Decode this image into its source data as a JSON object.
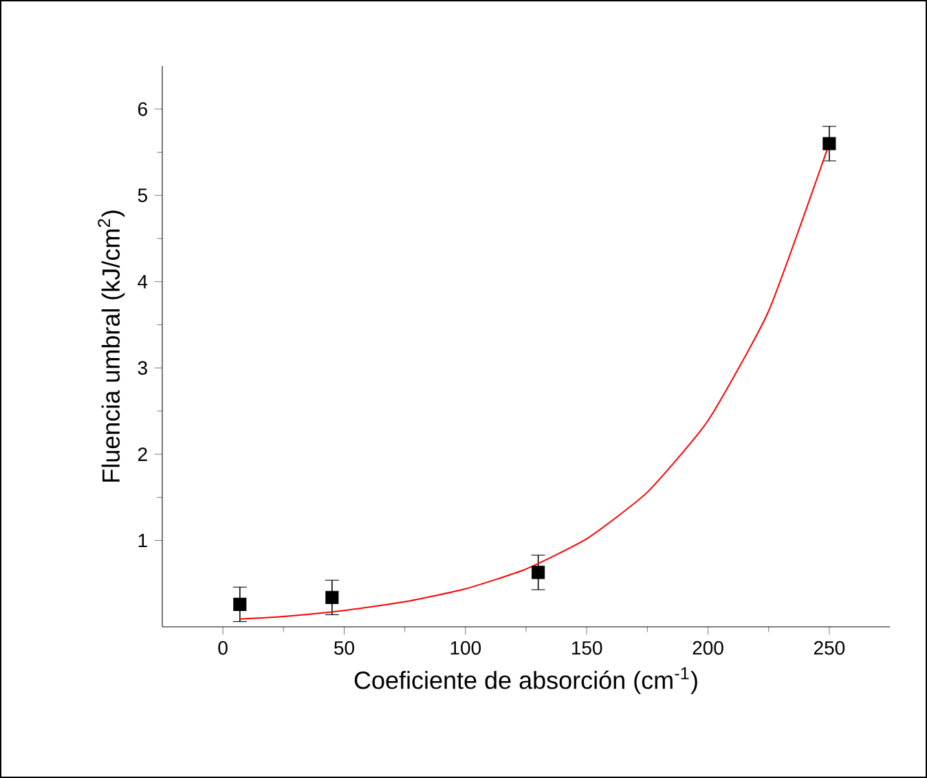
{
  "chart_data": {
    "type": "scatter",
    "xlabel": "Coeficiente de absorción (cm$^{-1}$)",
    "ylabel": "Fluencia umbral (kJ/cm$^{2}$)",
    "xlim": [
      -25,
      275
    ],
    "ylim": [
      0,
      6.5
    ],
    "xticks": [
      0,
      50,
      100,
      150,
      200,
      250
    ],
    "yticks": [
      1,
      2,
      3,
      4,
      5,
      6
    ],
    "grid": false,
    "marker": "square",
    "series": [
      {
        "color": "#000000",
        "x": [
          7,
          45,
          130,
          250
        ],
        "values": [
          0.26,
          0.34,
          0.63,
          5.6
        ],
        "errors": [
          0.2,
          0.2,
          0.2,
          0.2
        ]
      },
      {
        "type": "line",
        "color": "#ff0000",
        "marker": "none",
        "line_style": "solid",
        "x": [
          7,
          25,
          50,
          75,
          100,
          125,
          150,
          175,
          200,
          225,
          250
        ],
        "values": [
          0.09,
          0.12,
          0.19,
          0.29,
          0.44,
          0.67,
          1.02,
          1.56,
          2.39,
          3.66,
          5.6
        ]
      }
    ]
  }
}
